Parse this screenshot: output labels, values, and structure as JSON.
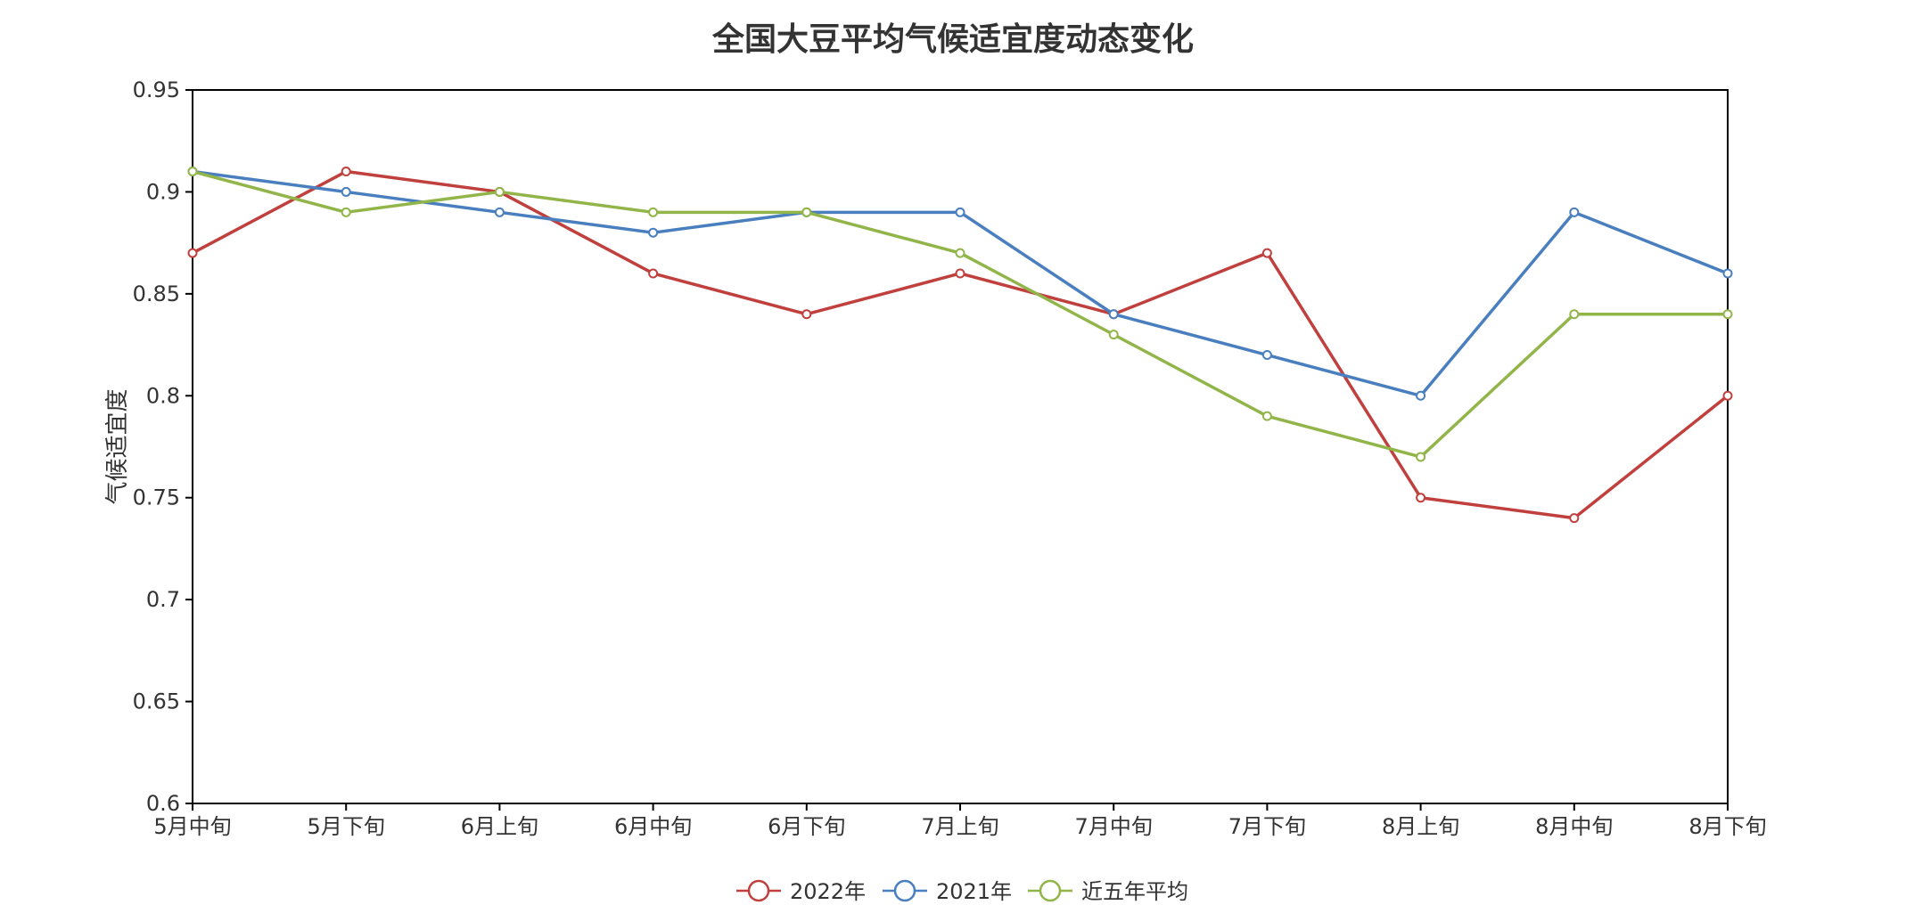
{
  "chart_data": {
    "type": "line",
    "title": "全国大豆平均气候适宜度动态变化",
    "xlabel": "",
    "ylabel": "气候适宜度",
    "ylim": [
      0.6,
      0.95
    ],
    "yticks": [
      "0.6",
      "0.65",
      "0.7",
      "0.75",
      "0.8",
      "0.85",
      "0.9",
      "0.95"
    ],
    "categories": [
      "5月中旬",
      "5月下旬",
      "6月上旬",
      "6月中旬",
      "6月下旬",
      "7月上旬",
      "7月中旬",
      "7月下旬",
      "8月上旬",
      "8月中旬",
      "8月下旬"
    ],
    "series": [
      {
        "name": "2022年",
        "color": "#c0403e",
        "values": [
          0.87,
          0.91,
          0.9,
          0.86,
          0.84,
          0.86,
          0.84,
          0.87,
          0.75,
          0.74,
          0.8
        ]
      },
      {
        "name": "2021年",
        "color": "#4a7fbf",
        "values": [
          0.91,
          0.9,
          0.89,
          0.88,
          0.89,
          0.89,
          0.84,
          0.82,
          0.8,
          0.89,
          0.86
        ]
      },
      {
        "name": "近五年平均",
        "color": "#92b54a",
        "values": [
          0.91,
          0.89,
          0.9,
          0.89,
          0.89,
          0.87,
          0.83,
          0.79,
          0.77,
          0.84,
          0.84
        ]
      }
    ],
    "grid": false,
    "legend_position": "bottom-center"
  }
}
